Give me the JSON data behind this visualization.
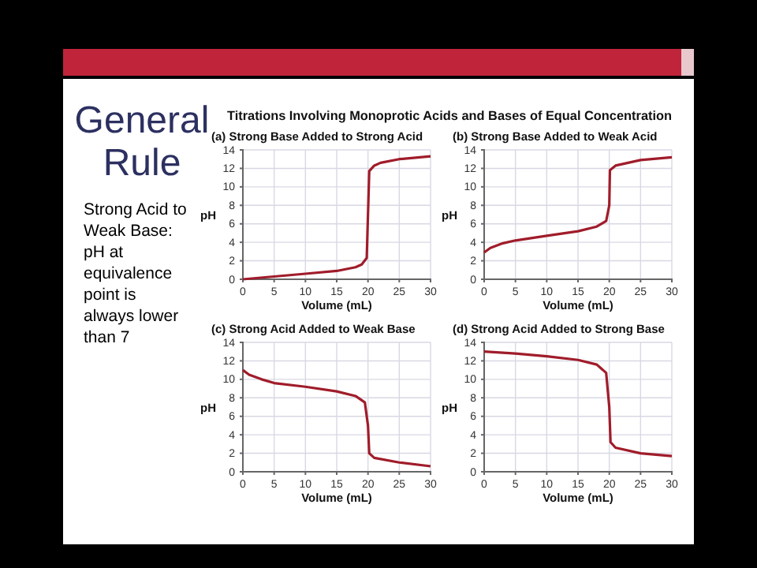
{
  "chart_data": [
    {
      "type": "other",
      "title": "General Rule",
      "annotations": [
        "Titrations Involving Monoprotic Acids and Bases of Equal Concentration",
        "Strong Acid to Weak Base: pH at equivalence point is always lower than 7"
      ]
    },
    {
      "type": "line",
      "title": "(a) Strong Base Added to Strong Acid",
      "xlabel": "Volume (mL)",
      "ylabel": "pH",
      "xlim": [
        0,
        30
      ],
      "xticks": [
        0,
        5,
        10,
        15,
        20,
        25,
        30
      ],
      "ylim": [
        0,
        14
      ],
      "yticks": [
        0,
        2,
        4,
        6,
        8,
        10,
        12,
        14
      ],
      "grid": true,
      "line_style": "solid",
      "marker": "none",
      "series": [
        {
          "color": "#a01c2a",
          "x": [
            0,
            5,
            10,
            15,
            18,
            19,
            19.8,
            20,
            20.2,
            21,
            22,
            25,
            30
          ],
          "values": [
            0,
            0.3,
            0.6,
            0.9,
            1.3,
            1.6,
            2.3,
            7,
            11.7,
            12.3,
            12.6,
            13,
            13.3
          ]
        }
      ]
    },
    {
      "type": "line",
      "title": "(b) Strong Base Added to Weak Acid",
      "xlabel": "Volume (mL)",
      "ylabel": "pH",
      "xlim": [
        0,
        30
      ],
      "xticks": [
        0,
        5,
        10,
        15,
        20,
        25,
        30
      ],
      "ylim": [
        0,
        14
      ],
      "yticks": [
        0,
        2,
        4,
        6,
        8,
        10,
        12,
        14
      ],
      "grid": true,
      "line_style": "solid",
      "marker": "none",
      "series": [
        {
          "color": "#a01c2a",
          "x": [
            0,
            1,
            3,
            5,
            10,
            15,
            18,
            19.5,
            20,
            20.1,
            21,
            25,
            30
          ],
          "values": [
            2.9,
            3.4,
            3.9,
            4.2,
            4.7,
            5.2,
            5.7,
            6.3,
            8,
            11.8,
            12.3,
            12.9,
            13.2
          ]
        }
      ]
    },
    {
      "type": "line",
      "title": "(c) Strong Acid Added to Weak Base",
      "xlabel": "Volume (mL)",
      "ylabel": "pH",
      "xlim": [
        0,
        30
      ],
      "xticks": [
        0,
        5,
        10,
        15,
        20,
        25,
        30
      ],
      "ylim": [
        0,
        14
      ],
      "yticks": [
        0,
        2,
        4,
        6,
        8,
        10,
        12,
        14
      ],
      "grid": true,
      "line_style": "solid",
      "marker": "none",
      "series": [
        {
          "color": "#a01c2a",
          "x": [
            0,
            1,
            3,
            5,
            10,
            15,
            18,
            19.5,
            20,
            20.2,
            21,
            25,
            30
          ],
          "values": [
            11,
            10.5,
            10,
            9.6,
            9.2,
            8.7,
            8.2,
            7.5,
            5,
            2,
            1.5,
            1,
            0.6
          ]
        }
      ]
    },
    {
      "type": "line",
      "title": "(d) Strong Acid Added to Strong Base",
      "xlabel": "Volume (mL)",
      "ylabel": "pH",
      "xlim": [
        0,
        30
      ],
      "xticks": [
        0,
        5,
        10,
        15,
        20,
        25,
        30
      ],
      "ylim": [
        0,
        14
      ],
      "yticks": [
        0,
        2,
        4,
        6,
        8,
        10,
        12,
        14
      ],
      "grid": true,
      "line_style": "solid",
      "marker": "none",
      "series": [
        {
          "color": "#a01c2a",
          "x": [
            0,
            5,
            10,
            15,
            18,
            19.5,
            20,
            20.2,
            21,
            25,
            30
          ],
          "values": [
            13,
            12.8,
            12.5,
            12.1,
            11.6,
            10.7,
            7,
            3.2,
            2.6,
            2,
            1.7
          ]
        }
      ]
    }
  ]
}
